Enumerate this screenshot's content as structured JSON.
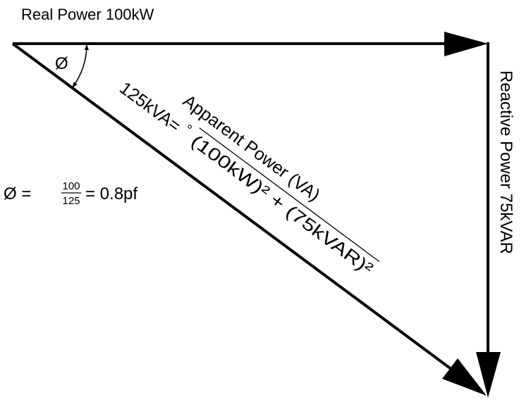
{
  "labels": {
    "real_power": "Real Power 100kW",
    "reactive_power": "Reactive Power 75kVAR",
    "angle": "Ø",
    "apparent_power": "Apparent Power (VA)",
    "apparent_value": "125kVA=",
    "radical": "°",
    "radicand": "(100kW)² + (75kVAR)²",
    "pf_lhs": "Ø =",
    "pf_numerator": "100",
    "pf_denominator": "125",
    "pf_rhs": "= 0.8pf"
  }
}
